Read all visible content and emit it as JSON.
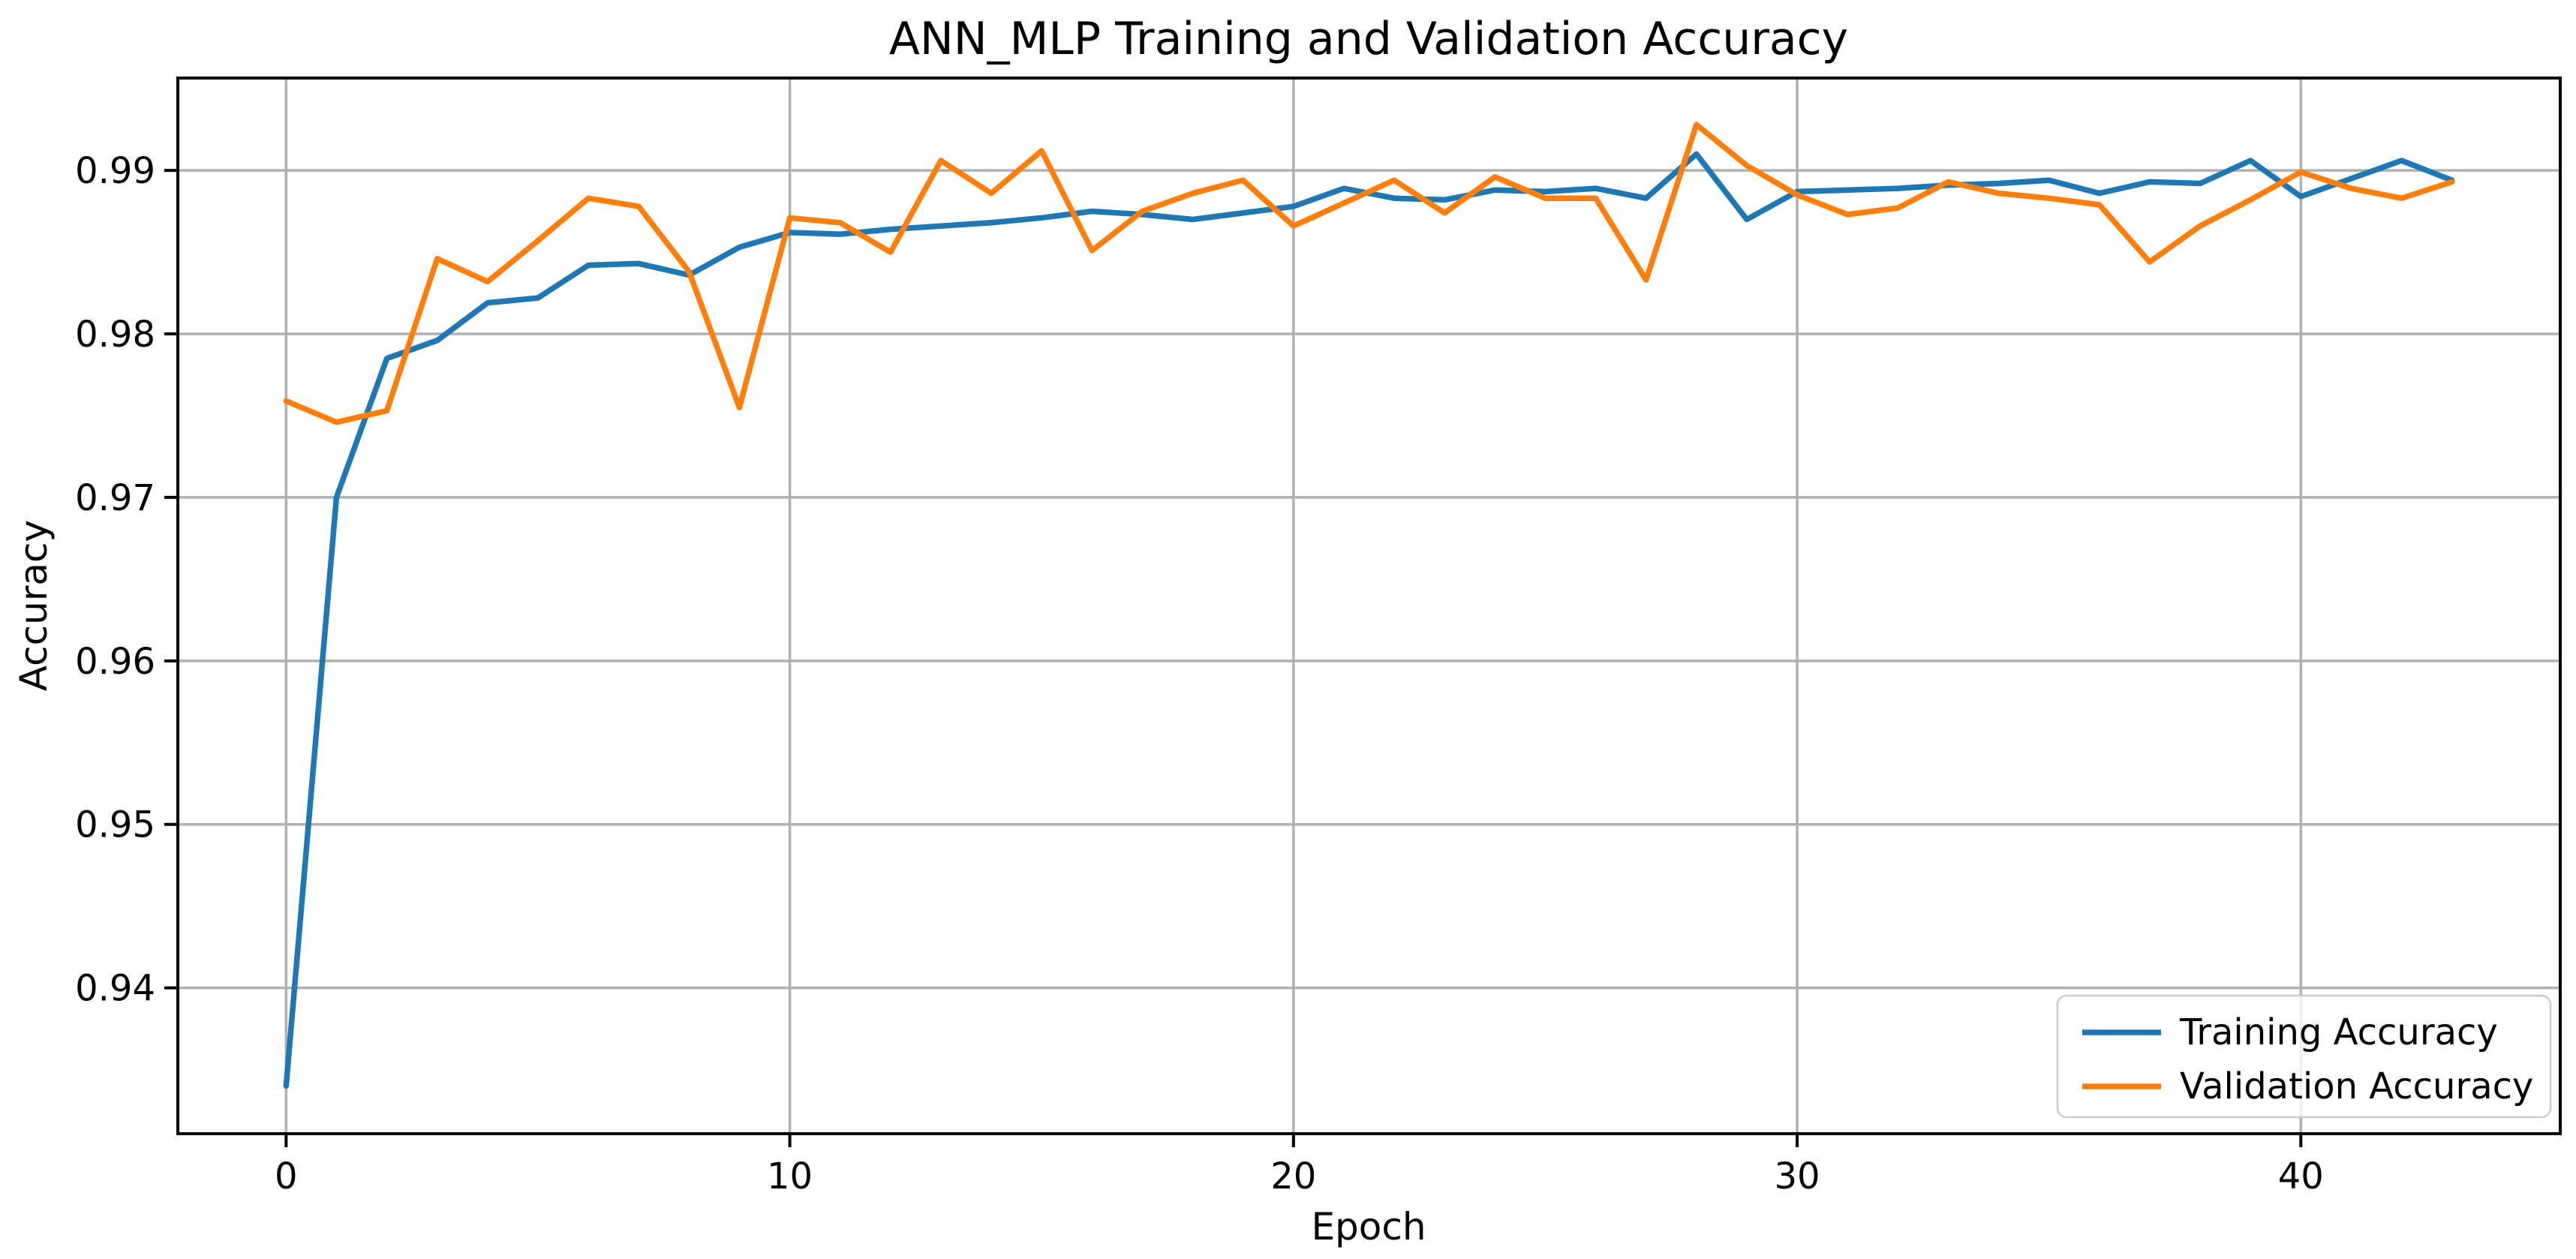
{
  "figure": {
    "background_color": "#ffffff",
    "text_color": "#000000",
    "grid_color": "#b0b0b0",
    "spine_color": "#000000"
  },
  "chart_data": {
    "type": "line",
    "title": "ANN_MLP Training and Validation Accuracy",
    "xlabel": "Epoch",
    "ylabel": "Accuracy",
    "x": [
      0,
      1,
      2,
      3,
      4,
      5,
      6,
      7,
      8,
      9,
      10,
      11,
      12,
      13,
      14,
      15,
      16,
      17,
      18,
      19,
      20,
      21,
      22,
      23,
      24,
      25,
      26,
      27,
      28,
      29,
      30,
      31,
      32,
      33,
      34,
      35,
      36,
      37,
      38,
      39,
      40,
      41,
      42,
      43
    ],
    "series": [
      {
        "name": "Training Accuracy",
        "color": "#1f77b4",
        "values": [
          0.934,
          0.97,
          0.9785,
          0.9796,
          0.9819,
          0.9822,
          0.9842,
          0.9843,
          0.9836,
          0.9853,
          0.9862,
          0.9861,
          0.9864,
          0.9866,
          0.9868,
          0.9871,
          0.9875,
          0.9873,
          0.987,
          0.9874,
          0.9878,
          0.9889,
          0.9883,
          0.9882,
          0.9888,
          0.9887,
          0.9889,
          0.9883,
          0.991,
          0.987,
          0.9887,
          0.9888,
          0.9889,
          0.9891,
          0.9892,
          0.9894,
          0.9886,
          0.9893,
          0.9892,
          0.9906,
          0.9884,
          0.9895,
          0.9906,
          0.9894
        ]
      },
      {
        "name": "Validation Accuracy",
        "color": "#ff7f0e",
        "values": [
          0.9759,
          0.9746,
          0.9753,
          0.9846,
          0.9832,
          0.9857,
          0.9883,
          0.9878,
          0.9838,
          0.9755,
          0.9871,
          0.9868,
          0.985,
          0.9906,
          0.9886,
          0.9912,
          0.9851,
          0.9875,
          0.9886,
          0.9894,
          0.9866,
          0.988,
          0.9894,
          0.9874,
          0.9896,
          0.9883,
          0.9883,
          0.9833,
          0.9928,
          0.9903,
          0.9885,
          0.9873,
          0.9877,
          0.9893,
          0.9886,
          0.9883,
          0.9879,
          0.9844,
          0.9866,
          0.9882,
          0.9899,
          0.9889,
          0.9883,
          0.9893
        ]
      }
    ],
    "x_ticks": [
      0,
      10,
      20,
      30,
      40
    ],
    "y_ticks": [
      0.94,
      0.95,
      0.96,
      0.97,
      0.98,
      0.99
    ],
    "xlim": [
      -2.15,
      45.15
    ],
    "ylim": [
      0.93108,
      0.99565
    ],
    "grid": true,
    "legend_position": "lower right"
  }
}
